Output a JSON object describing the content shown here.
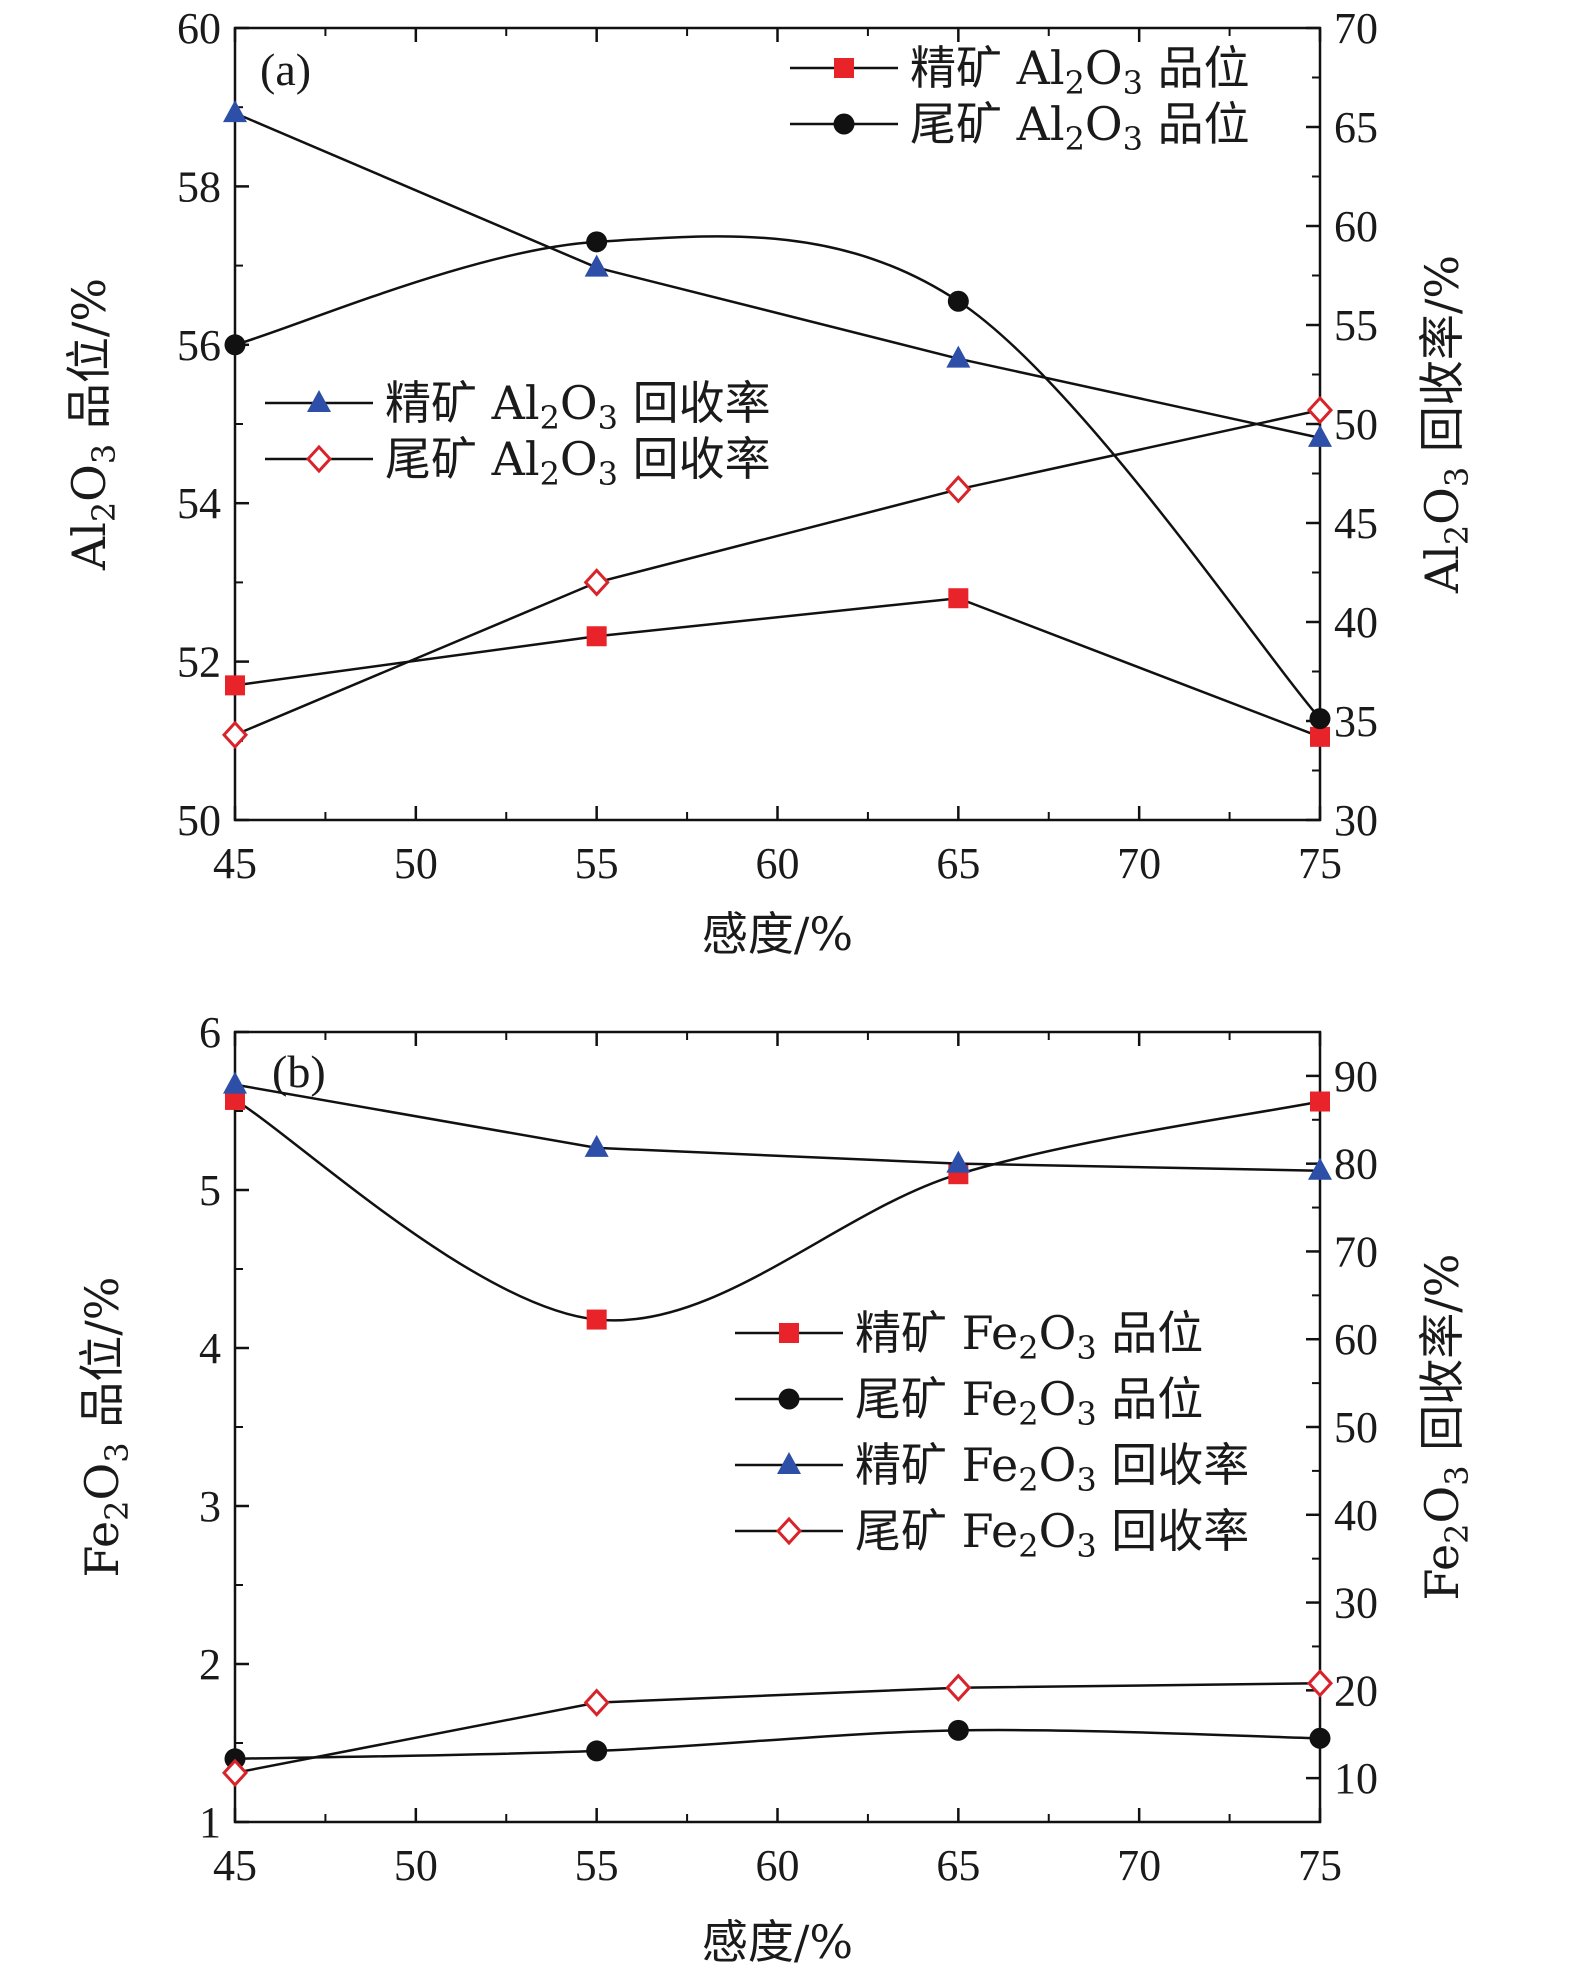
{
  "chart_data": [
    {
      "type": "line",
      "panel_label": "(a)",
      "x": [
        45,
        55,
        65,
        75
      ],
      "xlim": [
        45,
        75
      ],
      "xticks": [
        45,
        50,
        55,
        60,
        65,
        70,
        75
      ],
      "xlabel": "感度/%",
      "y_left": {
        "lim": [
          50,
          60
        ],
        "ticks": [
          50,
          52,
          54,
          56,
          58,
          60
        ],
        "label_parts": [
          "Al",
          "2",
          "O",
          "3",
          " 品位/%"
        ]
      },
      "y_right": {
        "lim": [
          30,
          70
        ],
        "ticks": [
          30,
          35,
          40,
          45,
          50,
          55,
          60,
          65,
          70
        ],
        "label_parts": [
          "Al",
          "2",
          "O",
          "3",
          " 回收率/%"
        ]
      },
      "series": [
        {
          "name_parts": [
            "精矿 Al",
            "2",
            "O",
            "3",
            " 品位"
          ],
          "axis": "left",
          "marker": "square",
          "color": "#e8232a",
          "values": [
            51.7,
            52.32,
            52.8,
            51.05
          ]
        },
        {
          "name_parts": [
            "尾矿 Al",
            "2",
            "O",
            "3",
            " 品位"
          ],
          "axis": "left",
          "marker": "circle",
          "color": "#111111",
          "values": [
            56.0,
            57.3,
            56.55,
            51.28
          ]
        },
        {
          "name_parts": [
            "精矿 Al",
            "2",
            "O",
            "3",
            " 回收率"
          ],
          "axis": "right",
          "marker": "triangle",
          "color": "#2d4fa8",
          "values": [
            65.7,
            57.9,
            53.3,
            49.3
          ]
        },
        {
          "name_parts": [
            "尾矿 Al",
            "2",
            "O",
            "3",
            " 回收率"
          ],
          "axis": "right",
          "marker": "diamond-open",
          "color": "#d9232a",
          "values": [
            34.3,
            42.0,
            46.7,
            50.7
          ]
        }
      ],
      "legends": [
        {
          "position": "top-right",
          "series": [
            0,
            1
          ]
        },
        {
          "position": "middle-left",
          "series": [
            2,
            3
          ]
        }
      ]
    },
    {
      "type": "line",
      "panel_label": "(b)",
      "x": [
        45,
        55,
        65,
        75
      ],
      "xlim": [
        45,
        75
      ],
      "xticks": [
        45,
        50,
        55,
        60,
        65,
        70,
        75
      ],
      "xlabel": "感度/%",
      "y_left": {
        "lim": [
          1,
          6
        ],
        "ticks": [
          1,
          2,
          3,
          4,
          5,
          6
        ],
        "label_parts": [
          "Fe",
          "2",
          "O",
          "3",
          " 品位/%"
        ]
      },
      "y_right": {
        "lim": [
          5,
          95
        ],
        "ticks": [
          10,
          20,
          30,
          40,
          50,
          60,
          70,
          80,
          90
        ],
        "label_parts": [
          "Fe",
          "2",
          "O",
          "3",
          " 回收率/%"
        ]
      },
      "series": [
        {
          "name_parts": [
            "精矿 Fe",
            "2",
            "O",
            "3",
            " 品位"
          ],
          "axis": "left",
          "marker": "square",
          "color": "#e8232a",
          "values": [
            5.57,
            4.18,
            5.1,
            5.56
          ]
        },
        {
          "name_parts": [
            "尾矿 Fe",
            "2",
            "O",
            "3",
            " 品位"
          ],
          "axis": "left",
          "marker": "circle",
          "color": "#111111",
          "values": [
            1.4,
            1.45,
            1.58,
            1.53
          ]
        },
        {
          "name_parts": [
            "精矿 Fe",
            "2",
            "O",
            "3",
            " 回收率"
          ],
          "axis": "right",
          "marker": "triangle",
          "color": "#2d4fa8",
          "values": [
            89.0,
            81.8,
            80.0,
            79.2
          ]
        },
        {
          "name_parts": [
            "尾矿 Fe",
            "2",
            "O",
            "3",
            " 回收率"
          ],
          "axis": "right",
          "marker": "diamond-open",
          "color": "#d9232a",
          "values": [
            10.6,
            18.6,
            20.3,
            20.8
          ]
        }
      ],
      "legends": [
        {
          "position": "middle-right",
          "series": [
            0,
            1,
            2,
            3
          ]
        }
      ]
    }
  ]
}
